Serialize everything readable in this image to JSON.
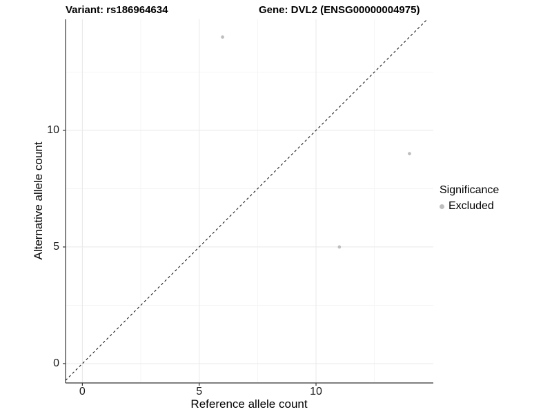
{
  "chart_data": {
    "type": "scatter",
    "title_left": "Variant: rs186964634",
    "title_right": "Gene: DVL2 (ENSG00000004975)",
    "xlabel": "Reference allele count",
    "ylabel": "Alternative allele count",
    "xlim": [
      -0.72,
      15.02
    ],
    "ylim": [
      -0.83,
      14.76
    ],
    "xticks": [
      0,
      5,
      10
    ],
    "yticks": [
      0,
      5,
      10
    ],
    "xticks_minor": [
      2.5,
      7.5,
      12.5
    ],
    "yticks_minor": [
      2.5,
      7.5,
      12.5
    ],
    "grid": "major+minor",
    "legend_position": "right",
    "series": [
      {
        "name": "Excluded",
        "color": "#bebebe",
        "points": [
          {
            "x": 6,
            "y": 14
          },
          {
            "x": 14,
            "y": 9
          },
          {
            "x": 11,
            "y": 5
          }
        ]
      }
    ],
    "reference_line": {
      "kind": "identity y=x",
      "style": "dashed",
      "color": "#1a1a1a"
    },
    "legend": {
      "title": "Significance",
      "items": [
        {
          "label": "Excluded",
          "color": "#bebebe"
        }
      ]
    },
    "colors": {
      "background": "#ffffff",
      "axis_line": "#333333",
      "tick_text": "#1a1a1a",
      "grid_major": "#e8e8e8",
      "grid_minor": "#f3f3f3",
      "point": "#bebebe"
    }
  }
}
